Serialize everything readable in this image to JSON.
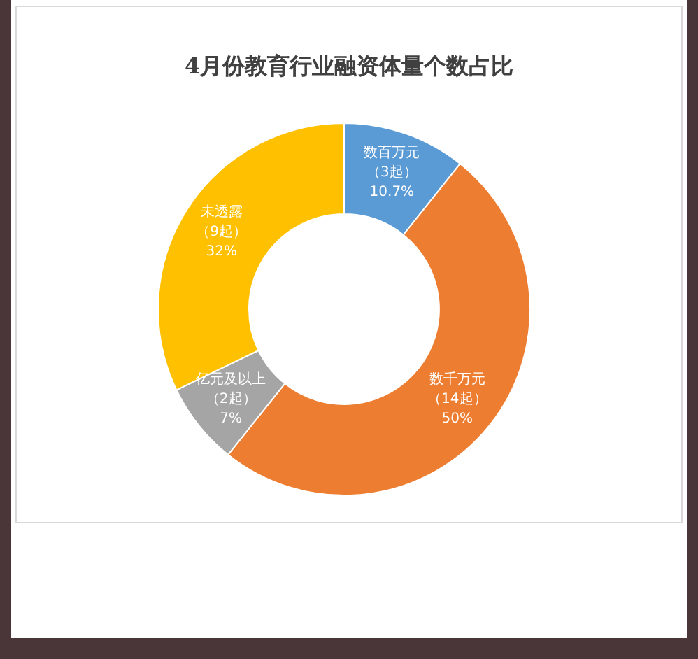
{
  "chart_data": {
    "type": "donut",
    "title": "4月份教育行业融资体量个数占比",
    "categories": [
      "数百万元",
      "数千万元",
      "亿元及以上",
      "未透露"
    ],
    "values": [
      3,
      14,
      2,
      9
    ],
    "value_labels": [
      "（3起）\n10.7%",
      "（14起）\n50%",
      "（2起）\n7%",
      "（9起）\n32%"
    ],
    "colors": [
      "#5b9bd5",
      "#ed7d31",
      "#a5a5a5",
      "#ffc000"
    ]
  }
}
